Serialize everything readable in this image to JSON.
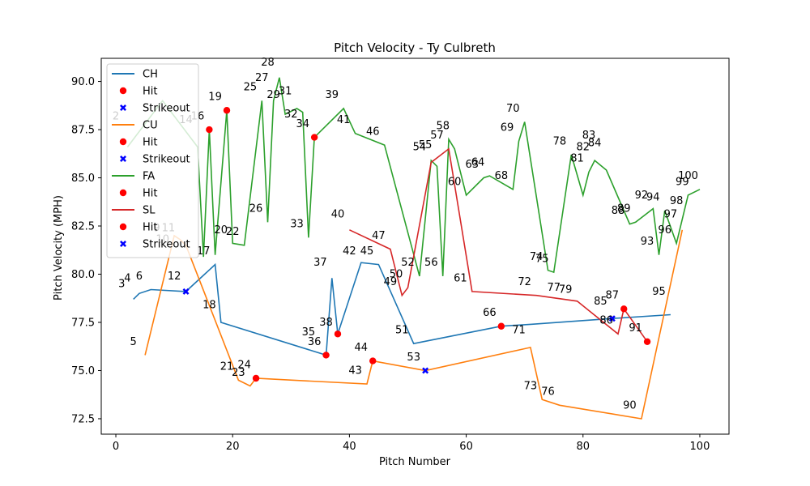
{
  "chart_data": {
    "type": "line",
    "title": "Pitch Velocity - Ty Culbreth",
    "xlabel": "Pitch Number",
    "ylabel": "Pitch Velocity (MPH)",
    "xlim": [
      -2.5,
      105
    ],
    "ylim": [
      71.7,
      91.2
    ],
    "xticks": [
      0,
      20,
      40,
      60,
      80,
      100
    ],
    "yticks": [
      72.5,
      75.0,
      77.5,
      80.0,
      82.5,
      85.0,
      87.5,
      90.0
    ],
    "ytick_labels": [
      "72.5",
      "75.0",
      "77.5",
      "80.0",
      "82.5",
      "85.0",
      "87.5",
      "90.0"
    ],
    "grid": false,
    "legend_position": "upper-left",
    "colors": {
      "CH": "#1f77b4",
      "CU": "#ff7f0e",
      "FA": "#2ca02c",
      "SL": "#d62728",
      "hit": "#ff0000",
      "strikeout": "#0000ff"
    },
    "legend": [
      {
        "label": "CH",
        "kind": "line",
        "color": "#1f77b4"
      },
      {
        "label": "Hit",
        "kind": "dot",
        "color": "#ff0000"
      },
      {
        "label": "Strikeout",
        "kind": "x",
        "color": "#0000ff"
      },
      {
        "label": "CU",
        "kind": "line",
        "color": "#ff7f0e"
      },
      {
        "label": "Hit",
        "kind": "dot",
        "color": "#ff0000"
      },
      {
        "label": "Strikeout",
        "kind": "x",
        "color": "#0000ff"
      },
      {
        "label": "FA",
        "kind": "line",
        "color": "#2ca02c"
      },
      {
        "label": "Hit",
        "kind": "dot",
        "color": "#ff0000"
      },
      {
        "label": "SL",
        "kind": "line",
        "color": "#d62728"
      },
      {
        "label": "Hit",
        "kind": "dot",
        "color": "#ff0000"
      },
      {
        "label": "Strikeout",
        "kind": "x",
        "color": "#0000ff"
      }
    ],
    "series": [
      {
        "name": "CH",
        "color": "#1f77b4",
        "points": [
          [
            3,
            78.7
          ],
          [
            4,
            79.0
          ],
          [
            6,
            79.2
          ],
          [
            12,
            79.1
          ],
          [
            17,
            80.5
          ],
          [
            18,
            77.5
          ],
          [
            36,
            75.8
          ],
          [
            37,
            79.8
          ],
          [
            38,
            76.9
          ],
          [
            42,
            80.6
          ],
          [
            45,
            80.5
          ],
          [
            51,
            76.4
          ],
          [
            66,
            77.3
          ],
          [
            71,
            77.4
          ],
          [
            85,
            77.7
          ],
          [
            95,
            77.9
          ]
        ]
      },
      {
        "name": "CU",
        "color": "#ff7f0e",
        "points": [
          [
            5,
            75.8
          ],
          [
            10,
            82.0
          ],
          [
            11,
            81.8
          ],
          [
            12,
            81.5
          ],
          [
            21,
            74.5
          ],
          [
            23,
            74.2
          ],
          [
            24,
            74.6
          ],
          [
            43,
            74.3
          ],
          [
            44,
            75.5
          ],
          [
            53,
            75.0
          ],
          [
            71,
            76.2
          ],
          [
            73,
            73.5
          ],
          [
            76,
            73.2
          ],
          [
            90,
            72.5
          ],
          [
            97,
            82.3
          ]
        ]
      },
      {
        "name": "FA",
        "color": "#2ca02c",
        "points": [
          [
            2,
            86.6
          ],
          [
            8,
            89.0
          ],
          [
            14,
            86.6
          ],
          [
            15,
            80.9
          ],
          [
            16,
            87.5
          ],
          [
            17,
            81.0
          ],
          [
            19,
            88.5
          ],
          [
            20,
            81.6
          ],
          [
            22,
            81.5
          ],
          [
            25,
            89.0
          ],
          [
            26,
            82.7
          ],
          [
            27,
            89.0
          ],
          [
            28,
            90.2
          ],
          [
            29,
            88.3
          ],
          [
            31,
            88.6
          ],
          [
            32,
            88.4
          ],
          [
            33,
            81.9
          ],
          [
            34,
            87.1
          ],
          [
            39,
            88.6
          ],
          [
            41,
            87.3
          ],
          [
            46,
            86.7
          ],
          [
            52,
            79.9
          ],
          [
            54,
            85.9
          ],
          [
            55,
            85.6
          ],
          [
            56,
            79.9
          ],
          [
            57,
            87.0
          ],
          [
            58,
            86.5
          ],
          [
            60,
            84.1
          ],
          [
            63,
            85.0
          ],
          [
            64,
            85.1
          ],
          [
            68,
            84.4
          ],
          [
            69,
            86.9
          ],
          [
            70,
            87.9
          ],
          [
            74,
            80.2
          ],
          [
            75,
            80.1
          ],
          [
            78,
            86.2
          ],
          [
            80,
            84.1
          ],
          [
            81,
            85.3
          ],
          [
            82,
            85.9
          ],
          [
            84,
            85.4
          ],
          [
            88,
            82.6
          ],
          [
            89,
            82.7
          ],
          [
            92,
            83.4
          ],
          [
            93,
            81.0
          ],
          [
            94,
            83.3
          ],
          [
            96,
            81.6
          ],
          [
            98,
            84.1
          ],
          [
            100,
            84.4
          ]
        ]
      },
      {
        "name": "SL",
        "color": "#d62728",
        "points": [
          [
            40,
            82.3
          ],
          [
            47,
            81.3
          ],
          [
            49,
            78.9
          ],
          [
            50,
            79.3
          ],
          [
            54,
            85.8
          ],
          [
            57,
            86.5
          ],
          [
            61,
            79.1
          ],
          [
            72,
            78.9
          ],
          [
            79,
            78.6
          ],
          [
            86,
            76.9
          ],
          [
            87,
            78.2
          ],
          [
            91,
            76.5
          ]
        ]
      }
    ],
    "hits": [
      [
        16,
        87.5
      ],
      [
        19,
        88.5
      ],
      [
        24,
        74.6
      ],
      [
        34,
        87.1
      ],
      [
        36,
        75.8
      ],
      [
        38,
        76.9
      ],
      [
        44,
        75.5
      ],
      [
        66,
        77.3
      ],
      [
        87,
        78.2
      ],
      [
        91,
        76.5
      ]
    ],
    "strikeouts": [
      [
        12,
        79.1
      ],
      [
        53,
        75.0
      ],
      [
        85,
        77.7
      ]
    ],
    "point_labels": [
      {
        "n": "2",
        "x": 0,
        "y": 88.2
      },
      {
        "n": "3",
        "x": 1,
        "y": 79.5
      },
      {
        "n": "4",
        "x": 2,
        "y": 79.8
      },
      {
        "n": "5",
        "x": 3,
        "y": 76.5
      },
      {
        "n": "6",
        "x": 4,
        "y": 79.9
      },
      {
        "n": "9",
        "x": 7,
        "y": 82.4
      },
      {
        "n": "10",
        "x": 8,
        "y": 81.8
      },
      {
        "n": "11",
        "x": 9,
        "y": 82.4
      },
      {
        "n": "12",
        "x": 10,
        "y": 79.9
      },
      {
        "n": "14",
        "x": 12,
        "y": 88.0
      },
      {
        "n": "16",
        "x": 14,
        "y": 88.2
      },
      {
        "n": "17",
        "x": 15,
        "y": 81.2
      },
      {
        "n": "18",
        "x": 16,
        "y": 78.4
      },
      {
        "n": "19",
        "x": 17,
        "y": 89.2
      },
      {
        "n": "20",
        "x": 18,
        "y": 82.3
      },
      {
        "n": "21",
        "x": 19,
        "y": 75.2
      },
      {
        "n": "22",
        "x": 20,
        "y": 82.2
      },
      {
        "n": "23",
        "x": 21,
        "y": 74.9
      },
      {
        "n": "24",
        "x": 22,
        "y": 75.3
      },
      {
        "n": "25",
        "x": 23,
        "y": 89.7
      },
      {
        "n": "26",
        "x": 24,
        "y": 83.4
      },
      {
        "n": "27",
        "x": 25,
        "y": 90.2
      },
      {
        "n": "28",
        "x": 26,
        "y": 91.0
      },
      {
        "n": "29",
        "x": 27,
        "y": 89.3
      },
      {
        "n": "31",
        "x": 29,
        "y": 89.5
      },
      {
        "n": "32",
        "x": 30,
        "y": 88.3
      },
      {
        "n": "33",
        "x": 31,
        "y": 82.6
      },
      {
        "n": "34",
        "x": 32,
        "y": 87.8
      },
      {
        "n": "35",
        "x": 33,
        "y": 77.0
      },
      {
        "n": "36",
        "x": 34,
        "y": 76.5
      },
      {
        "n": "37",
        "x": 35,
        "y": 80.6
      },
      {
        "n": "38",
        "x": 36,
        "y": 77.5
      },
      {
        "n": "39",
        "x": 37,
        "y": 89.3
      },
      {
        "n": "40",
        "x": 38,
        "y": 83.1
      },
      {
        "n": "41",
        "x": 39,
        "y": 88.0
      },
      {
        "n": "42",
        "x": 40,
        "y": 81.2
      },
      {
        "n": "43",
        "x": 41,
        "y": 75.0
      },
      {
        "n": "44",
        "x": 42,
        "y": 76.2
      },
      {
        "n": "45",
        "x": 43,
        "y": 81.2
      },
      {
        "n": "46",
        "x": 44,
        "y": 87.4
      },
      {
        "n": "47",
        "x": 45,
        "y": 82.0
      },
      {
        "n": "49",
        "x": 47,
        "y": 79.6
      },
      {
        "n": "50",
        "x": 48,
        "y": 80.0
      },
      {
        "n": "51",
        "x": 49,
        "y": 77.1
      },
      {
        "n": "52",
        "x": 50,
        "y": 80.6
      },
      {
        "n": "53",
        "x": 51,
        "y": 75.7
      },
      {
        "n": "54",
        "x": 52,
        "y": 86.6
      },
      {
        "n": "55",
        "x": 53,
        "y": 86.7
      },
      {
        "n": "56",
        "x": 54,
        "y": 80.6
      },
      {
        "n": "57",
        "x": 55,
        "y": 87.2
      },
      {
        "n": "58",
        "x": 56,
        "y": 87.7
      },
      {
        "n": "60",
        "x": 58,
        "y": 84.8
      },
      {
        "n": "61",
        "x": 59,
        "y": 79.8
      },
      {
        "n": "63",
        "x": 61,
        "y": 85.7
      },
      {
        "n": "64",
        "x": 62,
        "y": 85.8
      },
      {
        "n": "66",
        "x": 64,
        "y": 78.0
      },
      {
        "n": "68",
        "x": 66,
        "y": 85.1
      },
      {
        "n": "69",
        "x": 67,
        "y": 87.6
      },
      {
        "n": "70",
        "x": 68,
        "y": 88.6
      },
      {
        "n": "71",
        "x": 69,
        "y": 77.1
      },
      {
        "n": "72",
        "x": 70,
        "y": 79.6
      },
      {
        "n": "73",
        "x": 71,
        "y": 74.2
      },
      {
        "n": "74",
        "x": 72,
        "y": 80.9
      },
      {
        "n": "75",
        "x": 73,
        "y": 80.8
      },
      {
        "n": "76",
        "x": 74,
        "y": 73.9
      },
      {
        "n": "77",
        "x": 75,
        "y": 79.3
      },
      {
        "n": "78",
        "x": 76,
        "y": 86.9
      },
      {
        "n": "79",
        "x": 77,
        "y": 79.2
      },
      {
        "n": "81",
        "x": 79,
        "y": 86.0
      },
      {
        "n": "82",
        "x": 80,
        "y": 86.6
      },
      {
        "n": "83",
        "x": 81,
        "y": 87.2
      },
      {
        "n": "84",
        "x": 82,
        "y": 86.8
      },
      {
        "n": "85",
        "x": 83,
        "y": 78.6
      },
      {
        "n": "86",
        "x": 84,
        "y": 77.6
      },
      {
        "n": "87",
        "x": 85,
        "y": 78.9
      },
      {
        "n": "88",
        "x": 86,
        "y": 83.3
      },
      {
        "n": "89",
        "x": 87,
        "y": 83.4
      },
      {
        "n": "90",
        "x": 88,
        "y": 73.2
      },
      {
        "n": "91",
        "x": 89,
        "y": 77.2
      },
      {
        "n": "92",
        "x": 90,
        "y": 84.1
      },
      {
        "n": "93",
        "x": 91,
        "y": 81.7
      },
      {
        "n": "94",
        "x": 92,
        "y": 84.0
      },
      {
        "n": "95",
        "x": 93,
        "y": 79.1
      },
      {
        "n": "96",
        "x": 94,
        "y": 82.3
      },
      {
        "n": "97",
        "x": 95,
        "y": 83.1
      },
      {
        "n": "98",
        "x": 96,
        "y": 83.8
      },
      {
        "n": "99",
        "x": 97,
        "y": 84.8
      },
      {
        "n": "100",
        "x": 98,
        "y": 85.1
      }
    ]
  }
}
